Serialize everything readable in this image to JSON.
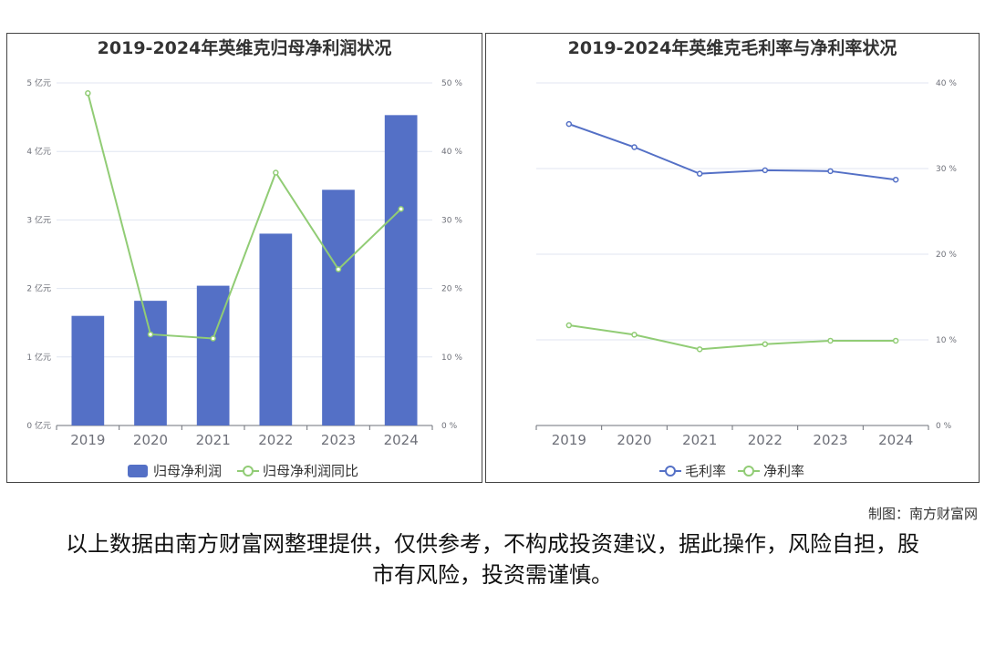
{
  "colors": {
    "bar": "#5470c6",
    "line_green": "#91cc75",
    "line_blue": "#5470c6",
    "axis": "#6e7079",
    "grid": "#e0e6f1",
    "label": "#6e7079"
  },
  "footer": {
    "credit": "制图：南方财富网",
    "disclaimer": "以上数据由南方财富网整理提供，仅供参考，不构成投资建议，据此操作，风险自担，股市有风险，投资需谨慎。"
  },
  "chart_data": [
    {
      "type": "bar",
      "title": "2019-2024年英维克归母净利润状况",
      "categories": [
        "2019",
        "2020",
        "2021",
        "2022",
        "2023",
        "2024"
      ],
      "left_axis": {
        "ylim": [
          0,
          5
        ],
        "ticks": [
          "0 亿元",
          "1 亿元",
          "2 亿元",
          "3 亿元",
          "4 亿元",
          "5 亿元"
        ]
      },
      "right_axis": {
        "ylim": [
          0,
          50
        ],
        "ticks": [
          "0 %",
          "10 %",
          "20 %",
          "30 %",
          "40 %",
          "50 %"
        ]
      },
      "grid": true,
      "legend_position": "bottom-center",
      "series": [
        {
          "name": "归母净利润",
          "type": "bar",
          "axis": "left",
          "values": [
            1.6,
            1.82,
            2.04,
            2.8,
            3.44,
            4.53
          ]
        },
        {
          "name": "归母净利润同比",
          "type": "line",
          "axis": "right",
          "values": [
            48.5,
            13.3,
            12.7,
            36.9,
            22.8,
            31.6
          ]
        }
      ]
    },
    {
      "type": "line",
      "title": "2019-2024年英维克毛利率与净利率状况",
      "categories": [
        "2019",
        "2020",
        "2021",
        "2022",
        "2023",
        "2024"
      ],
      "right_axis": {
        "ylim": [
          0,
          40
        ],
        "ticks": [
          "0 %",
          "10 %",
          "20 %",
          "30 %",
          "40 %"
        ]
      },
      "grid": true,
      "legend_position": "bottom-center",
      "series": [
        {
          "name": "毛利率",
          "values": [
            35.2,
            32.5,
            29.4,
            29.8,
            29.7,
            28.7
          ]
        },
        {
          "name": "净利率",
          "values": [
            11.7,
            10.6,
            8.9,
            9.5,
            9.9,
            9.9
          ]
        }
      ]
    }
  ]
}
